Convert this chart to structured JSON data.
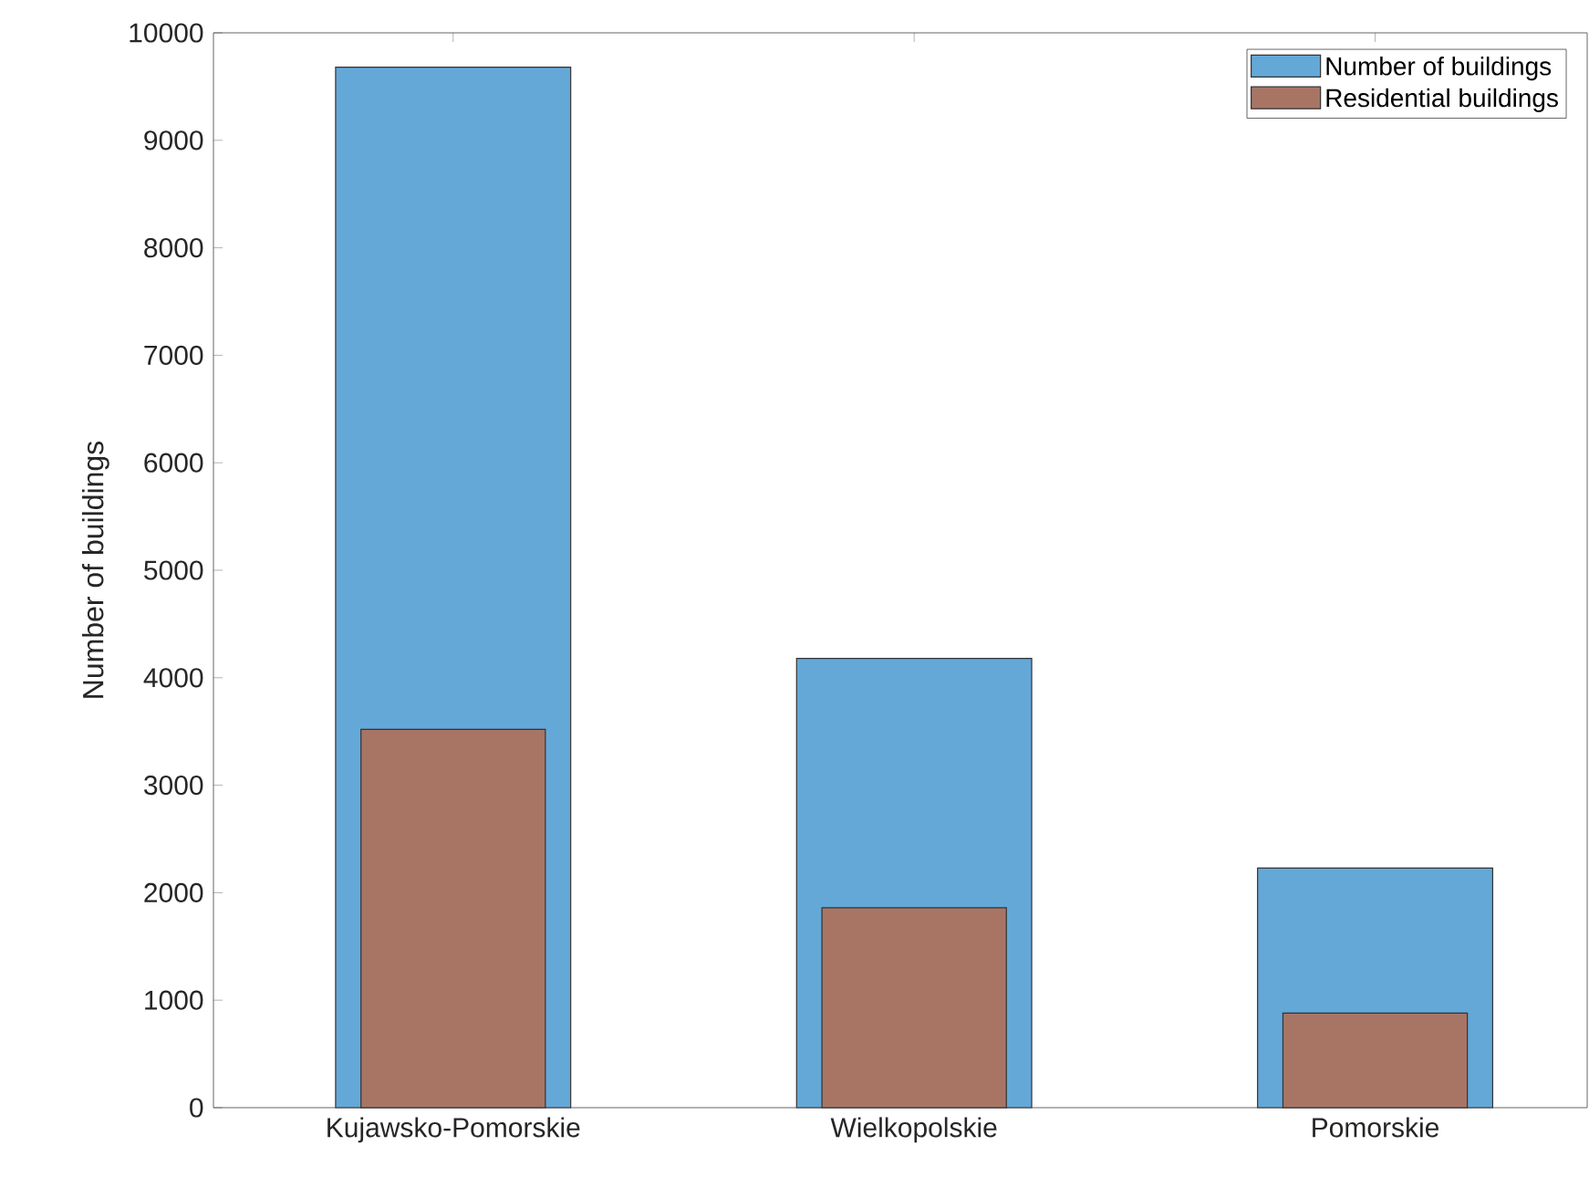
{
  "chart_data": {
    "type": "bar",
    "ylabel": "Number of buildings",
    "categories": [
      "Kujawsko-Pomorskie",
      "Wielkopolskie",
      "Pomorskie"
    ],
    "series": [
      {
        "name": "Number of buildings",
        "color": "#64a8d7",
        "values": [
          9680,
          4180,
          2230
        ]
      },
      {
        "name": "Residential buildings",
        "color": "#a87565",
        "values": [
          3520,
          1860,
          880
        ]
      }
    ],
    "ylim": [
      0,
      10000
    ],
    "yticks": [
      0,
      1000,
      2000,
      3000,
      4000,
      5000,
      6000,
      7000,
      8000,
      9000,
      10000
    ],
    "legend": "top right"
  }
}
